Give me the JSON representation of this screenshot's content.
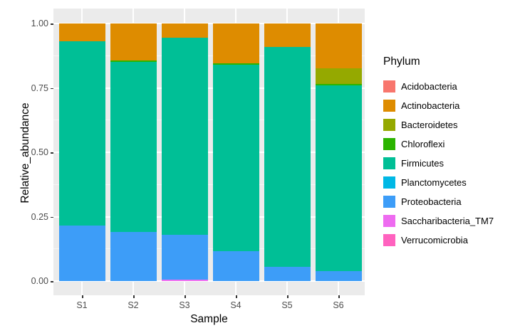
{
  "chart_data": {
    "type": "bar",
    "stacked": true,
    "title": "",
    "xlabel": "Sample",
    "ylabel": "Relative_abundance",
    "ylim": [
      0,
      1
    ],
    "grid": true,
    "panel_background": "#EBEBEB",
    "gridline_color": "#FFFFFF",
    "yticks": [
      0.0,
      0.25,
      0.5,
      0.75,
      1.0
    ],
    "ytick_labels": [
      "0.00",
      "0.25",
      "0.50",
      "0.75",
      "1.00"
    ],
    "yticks_minor": [
      0.125,
      0.375,
      0.625,
      0.875
    ],
    "categories": [
      "S1",
      "S2",
      "S3",
      "S4",
      "S5",
      "S6"
    ],
    "legend_title": "Phylum",
    "legend_position": "right",
    "phyla": [
      {
        "name": "Acidobacteria",
        "color": "#F8766D"
      },
      {
        "name": "Actinobacteria",
        "color": "#DE8C00"
      },
      {
        "name": "Bacteroidetes",
        "color": "#95A900"
      },
      {
        "name": "Chloroflexi",
        "color": "#2BB400"
      },
      {
        "name": "Firmicutes",
        "color": "#00BF96"
      },
      {
        "name": "Planctomycetes",
        "color": "#00B8E5"
      },
      {
        "name": "Proteobacteria",
        "color": "#3D9DF8"
      },
      {
        "name": "Saccharibacteria_TM7",
        "color": "#EE6BF0"
      },
      {
        "name": "Verrucomicrobia",
        "color": "#FF62BF"
      }
    ],
    "stack_order_top_to_bottom": [
      "Actinobacteria",
      "Bacteroidetes",
      "Chloroflexi",
      "Firmicutes",
      "Proteobacteria",
      "Saccharibacteria_TM7"
    ],
    "series": [
      {
        "name": "Actinobacteria",
        "values": [
          0.07,
          0.145,
          0.055,
          0.155,
          0.09,
          0.175
        ]
      },
      {
        "name": "Bacteroidetes",
        "values": [
          0,
          0,
          0,
          0,
          0,
          0.06
        ]
      },
      {
        "name": "Chloroflexi",
        "values": [
          0,
          0.005,
          0,
          0.005,
          0,
          0.005
        ]
      },
      {
        "name": "Firmicutes",
        "values": [
          0.715,
          0.66,
          0.765,
          0.725,
          0.855,
          0.72
        ]
      },
      {
        "name": "Proteobacteria",
        "values": [
          0.215,
          0.19,
          0.175,
          0.115,
          0.055,
          0.04
        ]
      },
      {
        "name": "Saccharibacteria_TM7",
        "values": [
          0,
          0,
          0.005,
          0,
          0,
          0
        ]
      }
    ]
  }
}
